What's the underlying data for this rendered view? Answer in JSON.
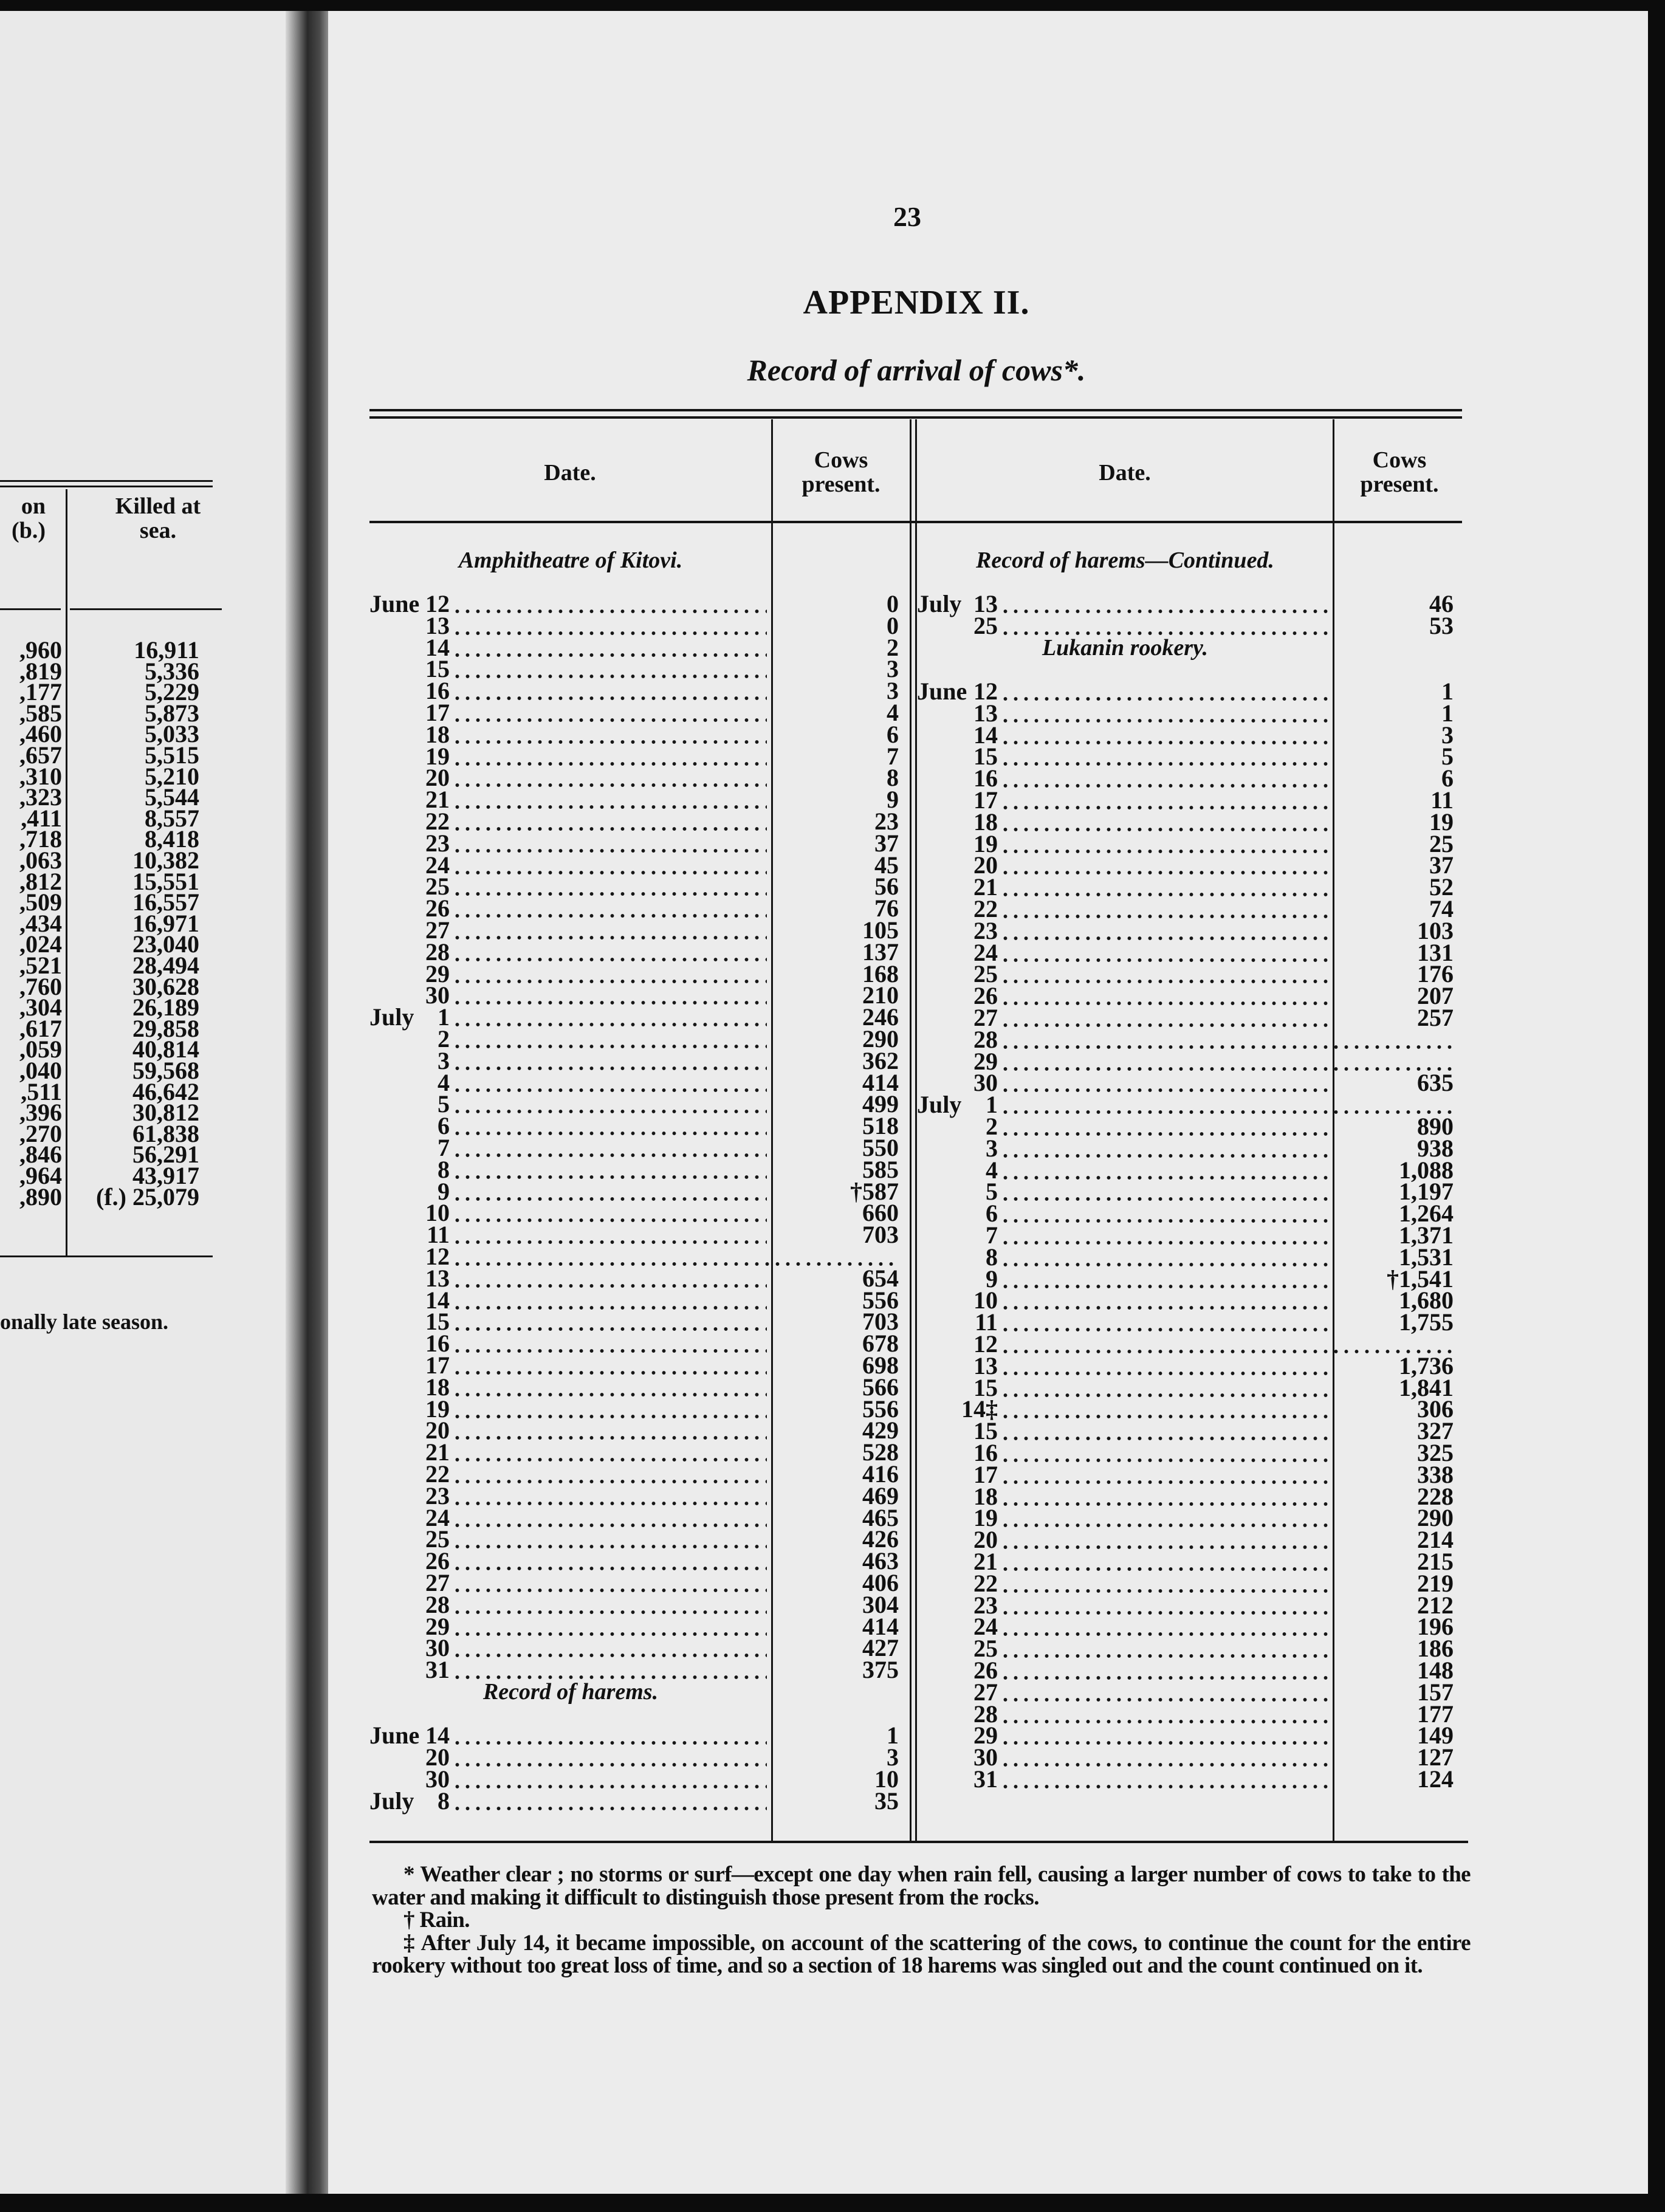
{
  "page_number": "23",
  "title": "APPENDIX II.",
  "subtitle": "Record of arrival of cows*.",
  "table": {
    "headers": {
      "date": "Date.",
      "cows_line1": "Cows",
      "cows_line2": "present."
    },
    "left_column": [
      {
        "heading": "Amphitheatre of Kitovi.",
        "rows": [
          {
            "month": "June",
            "day": "12",
            "cows": "0"
          },
          {
            "month": "",
            "day": "13",
            "cows": "0"
          },
          {
            "month": "",
            "day": "14",
            "cows": "2"
          },
          {
            "month": "",
            "day": "15",
            "cows": "3"
          },
          {
            "month": "",
            "day": "16",
            "cows": "3"
          },
          {
            "month": "",
            "day": "17",
            "cows": "4"
          },
          {
            "month": "",
            "day": "18",
            "cows": "6"
          },
          {
            "month": "",
            "day": "19",
            "cows": "7"
          },
          {
            "month": "",
            "day": "20",
            "cows": "8"
          },
          {
            "month": "",
            "day": "21",
            "cows": "9"
          },
          {
            "month": "",
            "day": "22",
            "cows": "23"
          },
          {
            "month": "",
            "day": "23",
            "cows": "37"
          },
          {
            "month": "",
            "day": "24",
            "cows": "45"
          },
          {
            "month": "",
            "day": "25",
            "cows": "56"
          },
          {
            "month": "",
            "day": "26",
            "cows": "76"
          },
          {
            "month": "",
            "day": "27",
            "cows": "105"
          },
          {
            "month": "",
            "day": "28",
            "cows": "137"
          },
          {
            "month": "",
            "day": "29",
            "cows": "168"
          },
          {
            "month": "",
            "day": "30",
            "cows": "210"
          },
          {
            "month": "July",
            "day": "1",
            "cows": "246"
          },
          {
            "month": "",
            "day": "2",
            "cows": "290"
          },
          {
            "month": "",
            "day": "3",
            "cows": "362"
          },
          {
            "month": "",
            "day": "4",
            "cows": "414"
          },
          {
            "month": "",
            "day": "5",
            "cows": "499"
          },
          {
            "month": "",
            "day": "6",
            "cows": "518"
          },
          {
            "month": "",
            "day": "7",
            "cows": "550"
          },
          {
            "month": "",
            "day": "8",
            "cows": "585"
          },
          {
            "month": "",
            "day": "9",
            "cows": "†587"
          },
          {
            "month": "",
            "day": "10",
            "cows": "660"
          },
          {
            "month": "",
            "day": "11",
            "cows": "703"
          },
          {
            "month": "",
            "day": "12",
            "cows": null
          },
          {
            "month": "",
            "day": "13",
            "cows": "654"
          },
          {
            "month": "",
            "day": "14",
            "cows": "556"
          },
          {
            "month": "",
            "day": "15",
            "cows": "703"
          },
          {
            "month": "",
            "day": "16",
            "cows": "678"
          },
          {
            "month": "",
            "day": "17",
            "cows": "698"
          },
          {
            "month": "",
            "day": "18",
            "cows": "566"
          },
          {
            "month": "",
            "day": "19",
            "cows": "556"
          },
          {
            "month": "",
            "day": "20",
            "cows": "429"
          },
          {
            "month": "",
            "day": "21",
            "cows": "528"
          },
          {
            "month": "",
            "day": "22",
            "cows": "416"
          },
          {
            "month": "",
            "day": "23",
            "cows": "469"
          },
          {
            "month": "",
            "day": "24",
            "cows": "465"
          },
          {
            "month": "",
            "day": "25",
            "cows": "426"
          },
          {
            "month": "",
            "day": "26",
            "cows": "463"
          },
          {
            "month": "",
            "day": "27",
            "cows": "406"
          },
          {
            "month": "",
            "day": "28",
            "cows": "304"
          },
          {
            "month": "",
            "day": "29",
            "cows": "414"
          },
          {
            "month": "",
            "day": "30",
            "cows": "427"
          },
          {
            "month": "",
            "day": "31",
            "cows": "375"
          }
        ]
      },
      {
        "heading": "Record of harems.",
        "rows": [
          {
            "month": "June",
            "day": "14",
            "cows": "1"
          },
          {
            "month": "",
            "day": "20",
            "cows": "3"
          },
          {
            "month": "",
            "day": "30",
            "cows": "10"
          },
          {
            "month": "July",
            "day": "8",
            "cows": "35"
          }
        ]
      }
    ],
    "right_column": [
      {
        "heading": "Record of harems—Continued.",
        "rows": [
          {
            "month": "July",
            "day": "13",
            "cows": "46"
          },
          {
            "month": "",
            "day": "25",
            "cows": "53"
          }
        ]
      },
      {
        "heading": "Lukanin rookery.",
        "rows": [
          {
            "month": "June",
            "day": "12",
            "cows": "1"
          },
          {
            "month": "",
            "day": "13",
            "cows": "1"
          },
          {
            "month": "",
            "day": "14",
            "cows": "3"
          },
          {
            "month": "",
            "day": "15",
            "cows": "5"
          },
          {
            "month": "",
            "day": "16",
            "cows": "6"
          },
          {
            "month": "",
            "day": "17",
            "cows": "11"
          },
          {
            "month": "",
            "day": "18",
            "cows": "19"
          },
          {
            "month": "",
            "day": "19",
            "cows": "25"
          },
          {
            "month": "",
            "day": "20",
            "cows": "37"
          },
          {
            "month": "",
            "day": "21",
            "cows": "52"
          },
          {
            "month": "",
            "day": "22",
            "cows": "74"
          },
          {
            "month": "",
            "day": "23",
            "cows": "103"
          },
          {
            "month": "",
            "day": "24",
            "cows": "131"
          },
          {
            "month": "",
            "day": "25",
            "cows": "176"
          },
          {
            "month": "",
            "day": "26",
            "cows": "207"
          },
          {
            "month": "",
            "day": "27",
            "cows": "257"
          },
          {
            "month": "",
            "day": "28",
            "cows": null
          },
          {
            "month": "",
            "day": "29",
            "cows": null
          },
          {
            "month": "",
            "day": "30",
            "cows": "635"
          },
          {
            "month": "July",
            "day": "1",
            "cows": null
          },
          {
            "month": "",
            "day": "2",
            "cows": "890"
          },
          {
            "month": "",
            "day": "3",
            "cows": "938"
          },
          {
            "month": "",
            "day": "4",
            "cows": "1,088"
          },
          {
            "month": "",
            "day": "5",
            "cows": "1,197"
          },
          {
            "month": "",
            "day": "6",
            "cows": "1,264"
          },
          {
            "month": "",
            "day": "7",
            "cows": "1,371"
          },
          {
            "month": "",
            "day": "8",
            "cows": "1,531"
          },
          {
            "month": "",
            "day": "9",
            "cows": "†1,541"
          },
          {
            "month": "",
            "day": "10",
            "cows": "1,680"
          },
          {
            "month": "",
            "day": "11",
            "cows": "1,755"
          },
          {
            "month": "",
            "day": "12",
            "cows": null
          },
          {
            "month": "",
            "day": "13",
            "cows": "1,736"
          },
          {
            "month": "",
            "day": "15",
            "cows": "1,841"
          },
          {
            "month": "",
            "day": "14‡",
            "cows": "306"
          },
          {
            "month": "",
            "day": "15",
            "cows": "327"
          },
          {
            "month": "",
            "day": "16",
            "cows": "325"
          },
          {
            "month": "",
            "day": "17",
            "cows": "338"
          },
          {
            "month": "",
            "day": "18",
            "cows": "228"
          },
          {
            "month": "",
            "day": "19",
            "cows": "290"
          },
          {
            "month": "",
            "day": "20",
            "cows": "214"
          },
          {
            "month": "",
            "day": "21",
            "cows": "215"
          },
          {
            "month": "",
            "day": "22",
            "cows": "219"
          },
          {
            "month": "",
            "day": "23",
            "cows": "212"
          },
          {
            "month": "",
            "day": "24",
            "cows": "196"
          },
          {
            "month": "",
            "day": "25",
            "cows": "186"
          },
          {
            "month": "",
            "day": "26",
            "cows": "148"
          },
          {
            "month": "",
            "day": "27",
            "cows": "157"
          },
          {
            "month": "",
            "day": "28",
            "cows": "177"
          },
          {
            "month": "",
            "day": "29",
            "cows": "149"
          },
          {
            "month": "",
            "day": "30",
            "cows": "127"
          },
          {
            "month": "",
            "day": "31",
            "cows": "124"
          }
        ]
      }
    ]
  },
  "footnotes": [
    "* Weather clear ; no storms or surf—except one day when rain fell, causing a larger number of cows to take to the water and making it difficult to distinguish those present from the rocks.",
    "† Rain.",
    "‡ After July 14, it became impossible, on account of the scattering of the cows, to continue the count for the entire rookery without too great loss of time, and so a section of 18 harems was singled out and the count continued on it."
  ],
  "previous_page_fragment": {
    "header_col1_line1": "on",
    "header_col1_line2": "(b.)",
    "header_col2_line1": "Killed at",
    "header_col2_line2": "sea.",
    "col1_values": [
      ",960",
      ",819",
      ",177",
      ",585",
      ",460",
      ",657",
      ",310",
      ",323",
      ",411",
      ",718",
      ",063",
      ",812",
      ",509",
      ",434",
      ",024",
      ",521",
      ",760",
      ",304",
      ",617",
      ",059",
      ",040",
      ",511",
      ",396",
      ",270",
      ",846",
      ",964",
      ",890"
    ],
    "col2_values": [
      "16,911",
      "5,336",
      "5,229",
      "5,873",
      "5,033",
      "5,515",
      "5,210",
      "5,544",
      "8,557",
      "8,418",
      "10,382",
      "15,551",
      "16,557",
      "16,971",
      "23,040",
      "28,494",
      "30,628",
      "26,189",
      "29,858",
      "40,814",
      "59,568",
      "46,642",
      "30,812",
      "61,838",
      "56,291",
      "43,917",
      "(f.) 25,079"
    ],
    "footer_fragment": "onally late season."
  }
}
